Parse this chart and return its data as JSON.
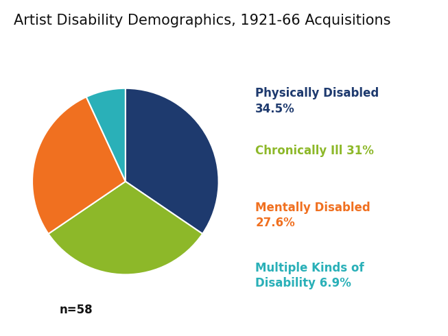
{
  "title": "Artist Disability Demographics, 1921-66 Acquisitions",
  "slices": [
    34.5,
    31.0,
    27.6,
    6.9
  ],
  "colors": [
    "#1e3a6e",
    "#8db829",
    "#f07020",
    "#2ab0b8"
  ],
  "labels": [
    "Physically Disabled\n34.5%",
    "Chronically Ill 31%",
    "Mentally Disabled\n27.6%",
    "Multiple Kinds of\nDisability 6.9%"
  ],
  "label_colors": [
    "#1e3a6e",
    "#8db829",
    "#f07020",
    "#2ab0b8"
  ],
  "startangle": 90,
  "n_label": "n=58",
  "background_color": "#ffffff",
  "title_fontsize": 15,
  "legend_fontsize": 12,
  "n_fontsize": 12
}
